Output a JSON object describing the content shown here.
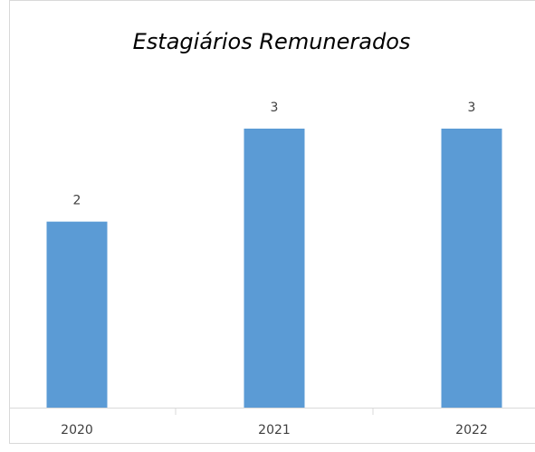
{
  "chart_data": {
    "type": "bar",
    "title": "Estagiários Remunerados",
    "categories": [
      "2020",
      "2021",
      "2022"
    ],
    "values": [
      2,
      3,
      3
    ],
    "color": "#5b9bd5"
  }
}
